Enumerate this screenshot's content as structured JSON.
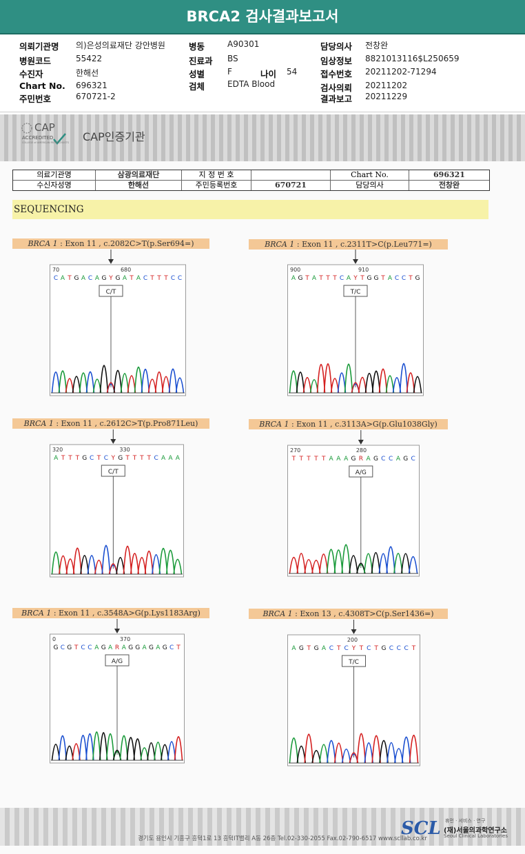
{
  "title": "BRCA2 검사결과보고서",
  "header": [
    {
      "label": "의뢰기관명",
      "value": "의)은성의료재단 강안병원"
    },
    {
      "label": "병원코드",
      "value": "55422"
    },
    {
      "label": "수진자",
      "value": "한해선"
    },
    {
      "label": "Chart No.",
      "value": "696321"
    },
    {
      "label": "주민번호",
      "value": "670721-2"
    },
    {
      "label": "병동",
      "value": "A90301"
    },
    {
      "label": "진료과",
      "value": "BS"
    },
    {
      "label": "성별",
      "value": "F"
    },
    {
      "label": "나이",
      "value": "54"
    },
    {
      "label": "검체",
      "value": "EDTA Blood"
    },
    {
      "label": "담당의사",
      "value": "전창완"
    },
    {
      "label": "임상정보",
      "value": "8821013116$L250659"
    },
    {
      "label": "접수번호",
      "value": "20211202-71294"
    },
    {
      "label": "검사의뢰",
      "value": "20211202"
    },
    {
      "label": "결과보고",
      "value": "20211229"
    }
  ],
  "cap": {
    "logo_main": "CAP",
    "logo_sub": "ACCREDITED",
    "logo_tiny": "COLLEGE of AMERICAN PATHOLOGISTS",
    "label": "CAP인증기관"
  },
  "patient_table": {
    "r1": [
      "의료기관명",
      "삼광의료재단",
      "지 정 번 호",
      "",
      "Chart No.",
      "696321"
    ],
    "r2": [
      "수신자성명",
      "한해선",
      "주민등록번호",
      "670721",
      "담당의사",
      "전창완"
    ]
  },
  "section": "SEQUENCING",
  "variants": [
    {
      "gene": "BRCA 1",
      "rest": " : Exon 11 , c.2082C>T(p.Ser694=)",
      "seq": "C A T G A C A G Y G A T A C T T T C C",
      "pos": [
        "70",
        "680"
      ],
      "call": "C/T"
    },
    {
      "gene": "BRCA 1",
      "rest": " : Exon 11 , c.2311T>C(p.Leu771=)",
      "seq": "A G T A T T T C A Y T G G T A C C T G",
      "pos": [
        "900",
        "910"
      ],
      "call": "T/C"
    },
    {
      "gene": "BRCA 1",
      "rest": " : Exon 11 , c.2612C>T(p.Pro871Leu)",
      "seq": "A T T T G C T C Y G T T T T C A A A",
      "pos": [
        "320",
        "330"
      ],
      "call": "C/T"
    },
    {
      "gene": "BRCA 1",
      "rest": " : Exon 11 , c.3113A>G(p.Glu1038Gly)",
      "seq": "T T T T T A A A G R A G C C A G C",
      "pos": [
        "270",
        "280"
      ],
      "call": "A/G"
    },
    {
      "gene": "BRCA 1",
      "rest": " : Exon 11 , c.3548A>G(p.Lys1183Arg)",
      "seq": "G C G T C C A G A R A G G A G A G C T",
      "pos": [
        "0",
        "370"
      ],
      "call": "A/G"
    },
    {
      "gene": "BRCA 1",
      "rest": " : Exon 13 , c.4308T>C(p.Ser1436=)",
      "seq": "A G T G A C T C Y T C T G C C C T",
      "pos": [
        "200"
      ],
      "call": "T/C"
    }
  ],
  "footer": {
    "address": "경기도 용인시 기흥구 흥덕1로 13 흥덕IT밸리 A동 26층  Tel.02-330-2055  Fax.02-790-6517  www.scllab.co.kr",
    "logo": "SCL",
    "tagline": "휴먼 · 서비스 · 연구",
    "name_ko": "(재)서울의과학연구소",
    "name_en": "Seoul Clinical Laboratories"
  }
}
